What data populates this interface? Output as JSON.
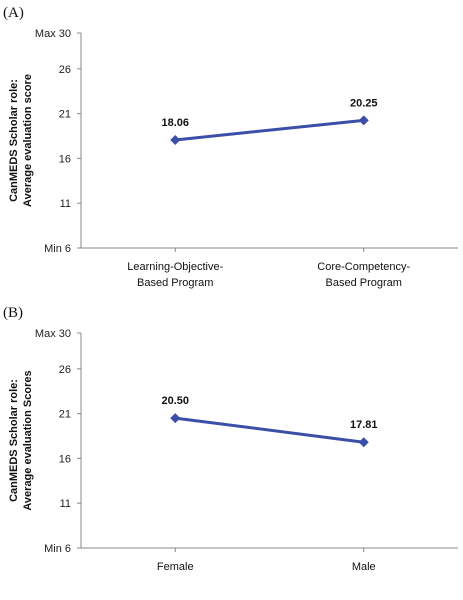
{
  "chart_data": [
    {
      "type": "line",
      "panel_label": "(A)",
      "ylabel_lines": [
        "CanMEDS  Scholar role:",
        "Average evaluation score"
      ],
      "ylim": [
        6,
        30
      ],
      "yticks": [
        {
          "value": 30,
          "label": "Max 30"
        },
        {
          "value": 26,
          "label": "26"
        },
        {
          "value": 21,
          "label": "21"
        },
        {
          "value": 16,
          "label": "16"
        },
        {
          "value": 11,
          "label": "11"
        },
        {
          "value": 6,
          "label": "Min  6"
        }
      ],
      "categories": [
        [
          "Learning-Objective-",
          "Based Program"
        ],
        [
          "Core-Competency-",
          "Based Program"
        ]
      ],
      "values": [
        18.06,
        20.25
      ],
      "value_labels": [
        "18.06",
        "20.25"
      ],
      "line_color": "#3b4fa8",
      "grid": false
    },
    {
      "type": "line",
      "panel_label": "(B)",
      "ylabel_lines": [
        "CanMEDS  Scholar role:",
        "Average evaluation Scores"
      ],
      "ylim": [
        6,
        30
      ],
      "yticks": [
        {
          "value": 30,
          "label": "Max 30"
        },
        {
          "value": 26,
          "label": "26"
        },
        {
          "value": 21,
          "label": "21"
        },
        {
          "value": 16,
          "label": "16"
        },
        {
          "value": 11,
          "label": "11"
        },
        {
          "value": 6,
          "label": "Min  6"
        }
      ],
      "categories": [
        [
          "Female"
        ],
        [
          "Male"
        ]
      ],
      "values": [
        20.5,
        17.81
      ],
      "value_labels": [
        "20.50",
        "17.81"
      ],
      "line_color": "#3b4fa8",
      "grid": false
    }
  ]
}
